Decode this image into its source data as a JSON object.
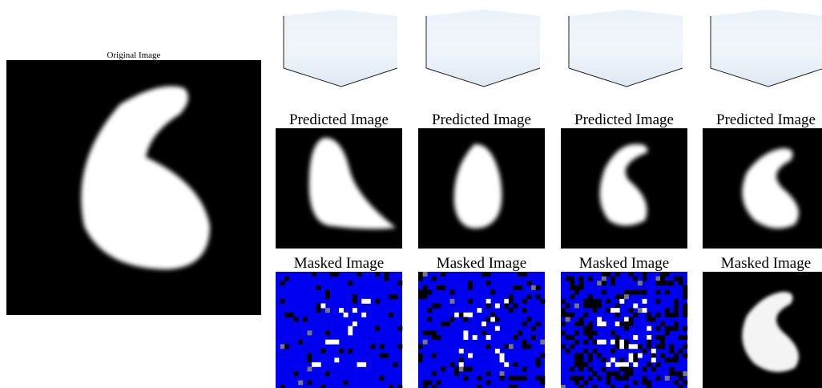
{
  "original": {
    "title": "Original Image"
  },
  "columns": [
    {
      "predicted_title": "Predicted Image",
      "masked_title": "Masked Image"
    },
    {
      "predicted_title": "Predicted Image",
      "masked_title": "Masked Image"
    },
    {
      "predicted_title": "Predicted Image",
      "masked_title": "Masked Image"
    },
    {
      "predicted_title": "Predicted Image",
      "masked_title": "Masked Image"
    }
  ]
}
